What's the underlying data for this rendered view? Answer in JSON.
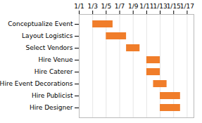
{
  "chart_data": {
    "type": "gantt",
    "orientation": "horizontal",
    "categories": [
      "Conceptualize Event",
      "Layout Logistics",
      "Select Vendors",
      "Hire Venue",
      "Hire Caterer",
      "Hire Event Decorations",
      "Hire Publicist",
      "Hire Designer"
    ],
    "start": [
      2,
      4,
      7,
      10,
      10,
      11,
      12,
      12
    ],
    "values": [
      3,
      3,
      2,
      2,
      2,
      2,
      3,
      3
    ],
    "color": "#F07D2A",
    "xlim": [
      0,
      17
    ],
    "xticks": [
      {
        "value": 0,
        "label": "1/1"
      },
      {
        "value": 2,
        "label": "1/3"
      },
      {
        "value": 4,
        "label": "1/5"
      },
      {
        "value": 6,
        "label": "1/7"
      },
      {
        "value": 8,
        "label": "1/9"
      },
      {
        "value": 10,
        "label": "1/11"
      },
      {
        "value": 12,
        "label": "1/13"
      },
      {
        "value": 14,
        "label": "1/15"
      },
      {
        "value": 16,
        "label": "1/17"
      }
    ],
    "grid": true
  }
}
